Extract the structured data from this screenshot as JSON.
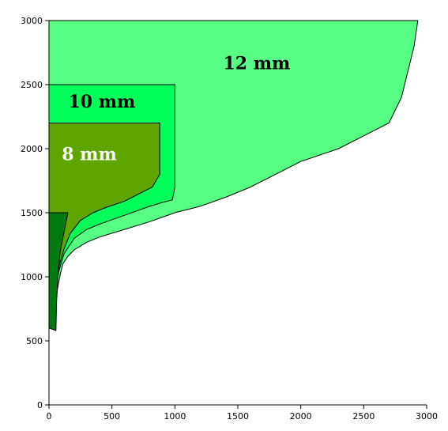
{
  "chart_data": {
    "type": "area",
    "title": "",
    "xlabel": "",
    "ylabel": "",
    "xlim": [
      0,
      3000
    ],
    "ylim": [
      0,
      3000
    ],
    "x_ticks": [
      0,
      500,
      1000,
      1500,
      2000,
      2500,
      3000
    ],
    "y_ticks": [
      0,
      500,
      1000,
      1500,
      2000,
      2500,
      3000
    ],
    "grid": false,
    "legend": "none",
    "regions": [
      {
        "label": "12 mm",
        "fill": "#57ff84",
        "label_color": "#000000",
        "label_at": [
          1650,
          2620
        ],
        "boundary": [
          [
            0,
            3000
          ],
          [
            2930,
            3000
          ],
          [
            2900,
            2800
          ],
          [
            2850,
            2600
          ],
          [
            2800,
            2400
          ],
          [
            2700,
            2200
          ],
          [
            2500,
            2100
          ],
          [
            2300,
            2000
          ],
          [
            2000,
            1900
          ],
          [
            1800,
            1800
          ],
          [
            1600,
            1700
          ],
          [
            1400,
            1620
          ],
          [
            1200,
            1550
          ],
          [
            1000,
            1500
          ],
          [
            800,
            1430
          ],
          [
            600,
            1370
          ],
          [
            400,
            1310
          ],
          [
            300,
            1270
          ],
          [
            200,
            1210
          ],
          [
            150,
            1160
          ],
          [
            110,
            1100
          ],
          [
            90,
            1020
          ],
          [
            70,
            920
          ],
          [
            55,
            820
          ],
          [
            50,
            760
          ],
          [
            0,
            760
          ]
        ]
      },
      {
        "label": "10 mm",
        "fill": "#00ff58",
        "label_color": "#000000",
        "label_at": [
          420,
          2320
        ],
        "boundary": [
          [
            0,
            2500
          ],
          [
            1000,
            2500
          ],
          [
            1000,
            1700
          ],
          [
            980,
            1600
          ],
          [
            900,
            1580
          ],
          [
            800,
            1550
          ],
          [
            600,
            1480
          ],
          [
            400,
            1410
          ],
          [
            300,
            1370
          ],
          [
            200,
            1300
          ],
          [
            120,
            1180
          ],
          [
            80,
            1050
          ],
          [
            60,
            920
          ],
          [
            50,
            800
          ],
          [
            0,
            800
          ]
        ]
      },
      {
        "label": "8 mm",
        "fill": "#5fa500",
        "label_color": "#ffffff",
        "label_at": [
          320,
          1910
        ],
        "boundary": [
          [
            0,
            2200
          ],
          [
            880,
            2200
          ],
          [
            880,
            1800
          ],
          [
            820,
            1700
          ],
          [
            700,
            1640
          ],
          [
            600,
            1590
          ],
          [
            450,
            1540
          ],
          [
            350,
            1500
          ],
          [
            250,
            1440
          ],
          [
            170,
            1340
          ],
          [
            120,
            1220
          ],
          [
            80,
            1080
          ],
          [
            60,
            900
          ],
          [
            50,
            780
          ],
          [
            0,
            780
          ]
        ]
      },
      {
        "label": "",
        "fill": "#007b10",
        "label_color": "#000000",
        "label_at": null,
        "boundary": [
          [
            0,
            1500
          ],
          [
            150,
            1500
          ],
          [
            120,
            1350
          ],
          [
            90,
            1200
          ],
          [
            70,
            1000
          ],
          [
            60,
            800
          ],
          [
            55,
            580
          ],
          [
            0,
            600
          ]
        ]
      }
    ]
  }
}
